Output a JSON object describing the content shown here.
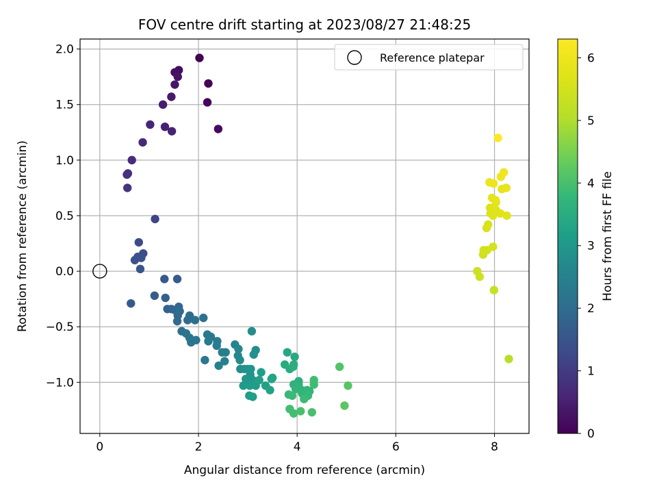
{
  "chart_data": {
    "type": "scatter",
    "title": "FOV centre drift starting at 2023/08/27 21:48:25",
    "xlabel": "Angular distance from reference (arcmin)",
    "ylabel": "Rotation from reference (arcmin)",
    "xlim": [
      -0.4,
      8.7
    ],
    "ylim": [
      -1.46,
      2.09
    ],
    "xticks": [
      0,
      2,
      4,
      6,
      8
    ],
    "xtick_labels": [
      "0",
      "2",
      "4",
      "6",
      "8"
    ],
    "yticks": [
      -1.0,
      -0.5,
      0.0,
      0.5,
      1.0,
      1.5,
      2.0
    ],
    "ytick_labels": [
      "−1.0",
      "−0.5",
      "0.0",
      "0.5",
      "1.0",
      "1.5",
      "2.0"
    ],
    "grid": true,
    "legend_position": "top-right",
    "reference": {
      "name": "Reference platepar",
      "x": 0.0,
      "y": 0.0
    },
    "colorbar": {
      "label": "Hours from first FF file",
      "colormap": "viridis",
      "range": [
        0,
        6.3
      ],
      "ticks": [
        0,
        1,
        2,
        3,
        4,
        5,
        6
      ],
      "tick_labels": [
        "0",
        "1",
        "2",
        "3",
        "4",
        "5",
        "6"
      ]
    },
    "points": [
      [
        2.02,
        1.92,
        0.0
      ],
      [
        2.2,
        1.69,
        0.05
      ],
      [
        2.18,
        1.52,
        0.1
      ],
      [
        2.4,
        1.28,
        0.15
      ],
      [
        1.6,
        1.81,
        0.2
      ],
      [
        1.52,
        1.79,
        0.25
      ],
      [
        1.58,
        1.75,
        0.3
      ],
      [
        1.52,
        1.68,
        0.35
      ],
      [
        1.45,
        1.57,
        0.4
      ],
      [
        1.28,
        1.5,
        0.45
      ],
      [
        1.32,
        1.3,
        0.5
      ],
      [
        1.46,
        1.26,
        0.55
      ],
      [
        1.02,
        1.32,
        0.6
      ],
      [
        0.87,
        1.16,
        0.65
      ],
      [
        0.65,
        1.0,
        0.7
      ],
      [
        0.57,
        0.88,
        0.75
      ],
      [
        0.55,
        0.87,
        0.8
      ],
      [
        0.56,
        0.75,
        0.85
      ],
      [
        1.12,
        0.47,
        1.2
      ],
      [
        0.79,
        0.26,
        1.3
      ],
      [
        0.88,
        0.16,
        1.35
      ],
      [
        0.77,
        0.13,
        1.4
      ],
      [
        0.71,
        0.1,
        1.45
      ],
      [
        0.84,
        0.12,
        1.45
      ],
      [
        0.82,
        0.02,
        1.5
      ],
      [
        1.31,
        -0.07,
        1.6
      ],
      [
        1.57,
        -0.07,
        1.6
      ],
      [
        0.63,
        -0.29,
        1.6
      ],
      [
        1.11,
        -0.22,
        1.65
      ],
      [
        1.33,
        -0.24,
        1.7
      ],
      [
        1.37,
        -0.34,
        1.75
      ],
      [
        1.45,
        -0.34,
        1.8
      ],
      [
        1.52,
        -0.35,
        1.85
      ],
      [
        1.6,
        -0.32,
        1.9
      ],
      [
        1.58,
        -0.4,
        1.9
      ],
      [
        1.62,
        -0.36,
        1.95
      ],
      [
        1.57,
        -0.45,
        1.95
      ],
      [
        1.78,
        -0.44,
        2.0
      ],
      [
        1.82,
        -0.4,
        2.0
      ],
      [
        1.93,
        -0.44,
        2.05
      ],
      [
        2.1,
        -0.42,
        2.1
      ],
      [
        1.66,
        -0.54,
        2.1
      ],
      [
        1.75,
        -0.56,
        2.15
      ],
      [
        1.82,
        -0.6,
        2.15
      ],
      [
        1.85,
        -0.64,
        2.2
      ],
      [
        1.95,
        -0.62,
        2.2
      ],
      [
        2.18,
        -0.57,
        2.25
      ],
      [
        2.25,
        -0.59,
        2.25
      ],
      [
        2.2,
        -0.63,
        2.3
      ],
      [
        2.13,
        -0.8,
        2.3
      ],
      [
        2.38,
        -0.63,
        2.35
      ],
      [
        2.37,
        -0.67,
        2.35
      ],
      [
        2.48,
        -0.73,
        2.4
      ],
      [
        2.55,
        -0.73,
        2.45
      ],
      [
        2.53,
        -0.81,
        2.45
      ],
      [
        2.41,
        -0.85,
        2.5
      ],
      [
        2.74,
        -0.66,
        2.55
      ],
      [
        2.81,
        -0.7,
        2.6
      ],
      [
        2.8,
        -0.76,
        2.65
      ],
      [
        2.84,
        -0.8,
        2.7
      ],
      [
        2.85,
        -0.88,
        2.75
      ],
      [
        3.08,
        -0.54,
        2.8
      ],
      [
        3.16,
        -0.71,
        2.8
      ],
      [
        3.12,
        -0.75,
        2.85
      ],
      [
        2.93,
        -0.88,
        2.85
      ],
      [
        3.0,
        -0.88,
        2.9
      ],
      [
        3.06,
        -0.88,
        2.95
      ],
      [
        3.05,
        -0.93,
        2.95
      ],
      [
        2.96,
        -0.97,
        3.0
      ],
      [
        3.1,
        -0.98,
        3.0
      ],
      [
        3.07,
        -1.0,
        3.0
      ],
      [
        3.11,
        -1.02,
        3.05
      ],
      [
        2.91,
        -1.03,
        3.05
      ],
      [
        3.04,
        -1.03,
        3.1
      ],
      [
        3.16,
        -1.03,
        3.1
      ],
      [
        3.03,
        -1.12,
        3.1
      ],
      [
        3.1,
        -1.13,
        3.15
      ],
      [
        3.27,
        -0.91,
        3.15
      ],
      [
        3.23,
        -0.98,
        3.2
      ],
      [
        3.36,
        -1.03,
        3.2
      ],
      [
        3.45,
        -1.07,
        3.25
      ],
      [
        3.5,
        -0.96,
        3.25
      ],
      [
        3.48,
        -0.97,
        3.3
      ],
      [
        3.8,
        -0.73,
        3.35
      ],
      [
        3.95,
        -0.77,
        3.4
      ],
      [
        3.75,
        -0.84,
        3.45
      ],
      [
        3.85,
        -0.88,
        3.5
      ],
      [
        3.93,
        -0.84,
        3.5
      ],
      [
        3.92,
        -0.86,
        3.55
      ],
      [
        4.03,
        -0.99,
        3.55
      ],
      [
        4.03,
        -1.02,
        3.6
      ],
      [
        3.93,
        -1.02,
        3.6
      ],
      [
        4.01,
        -1.05,
        3.65
      ],
      [
        4.09,
        -1.07,
        3.65
      ],
      [
        3.97,
        -1.06,
        3.7
      ],
      [
        4.1,
        -1.1,
        3.7
      ],
      [
        4.2,
        -1.07,
        3.75
      ],
      [
        4.25,
        -1.08,
        3.75
      ],
      [
        4.22,
        -1.12,
        3.8
      ],
      [
        3.83,
        -1.11,
        3.8
      ],
      [
        3.9,
        -1.12,
        3.85
      ],
      [
        4.14,
        -1.15,
        3.85
      ],
      [
        4.34,
        -0.98,
        3.9
      ],
      [
        4.34,
        -1.02,
        3.9
      ],
      [
        3.85,
        -1.24,
        3.95
      ],
      [
        3.93,
        -1.28,
        3.95
      ],
      [
        4.07,
        -1.26,
        4.0
      ],
      [
        4.3,
        -1.27,
        4.0
      ],
      [
        4.86,
        -0.86,
        4.1
      ],
      [
        5.03,
        -1.03,
        4.15
      ],
      [
        4.96,
        -1.21,
        4.2
      ],
      [
        8.29,
        -0.79,
        5.1
      ],
      [
        7.99,
        -0.17,
        5.3
      ],
      [
        7.65,
        0.0,
        5.4
      ],
      [
        7.7,
        -0.05,
        5.4
      ],
      [
        7.77,
        0.15,
        5.45
      ],
      [
        7.78,
        0.19,
        5.5
      ],
      [
        7.85,
        0.19,
        5.5
      ],
      [
        7.97,
        0.22,
        5.55
      ],
      [
        7.84,
        0.39,
        5.6
      ],
      [
        7.87,
        0.42,
        5.6
      ],
      [
        7.92,
        0.52,
        5.65
      ],
      [
        7.91,
        0.57,
        5.65
      ],
      [
        7.97,
        0.5,
        5.7
      ],
      [
        8.03,
        0.55,
        5.7
      ],
      [
        8.12,
        0.52,
        5.75
      ],
      [
        8.25,
        0.5,
        5.75
      ],
      [
        8.03,
        0.62,
        5.8
      ],
      [
        7.95,
        0.66,
        5.8
      ],
      [
        8.02,
        0.64,
        5.85
      ],
      [
        8.15,
        0.74,
        5.85
      ],
      [
        8.24,
        0.75,
        5.9
      ],
      [
        8.23,
        0.75,
        5.9
      ],
      [
        7.9,
        0.8,
        5.95
      ],
      [
        7.98,
        0.79,
        6.0
      ],
      [
        8.13,
        0.85,
        6.0
      ],
      [
        8.19,
        0.89,
        6.05
      ],
      [
        8.07,
        1.2,
        6.3
      ]
    ]
  }
}
